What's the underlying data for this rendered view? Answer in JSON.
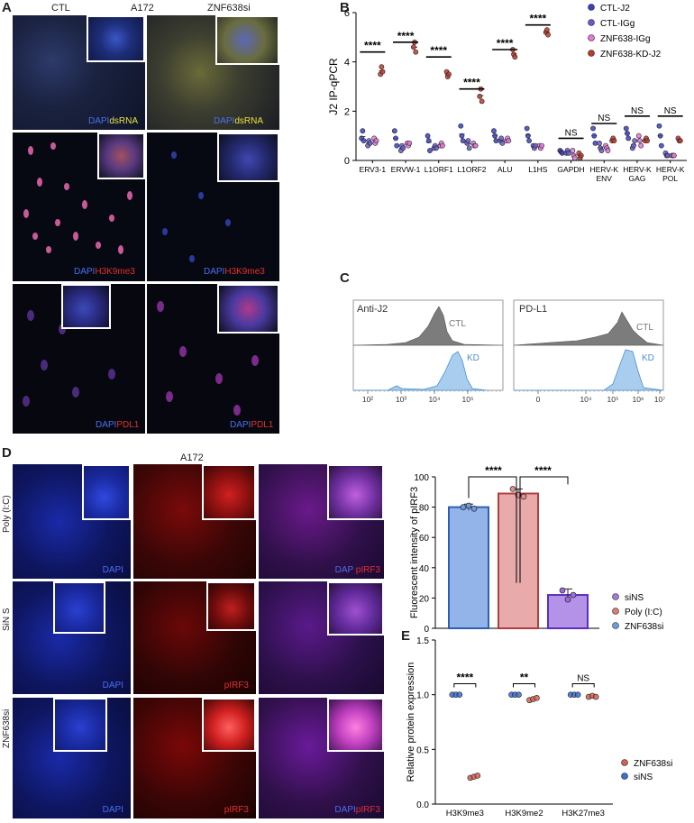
{
  "panels": {
    "a": "A",
    "b": "B",
    "c": "C",
    "d": "D",
    "e": "E"
  },
  "panel_a": {
    "title": "A172",
    "col_ctl": "CTL",
    "col_si": "ZNF638si",
    "stain_dapi": "DAPI",
    "stain_dsrna": "dsRNA",
    "stain_h3k9me3": "H3K9me3",
    "stain_pdl1": "PDL1"
  },
  "panel_d": {
    "title": "A172",
    "row1": "Poly (I:C)",
    "row2": "SiN S",
    "row3": "ZNF638si",
    "dapi": "DAPI",
    "pirf3": "pIRF3",
    "merge_dapi": "DAP",
    "merge_dapi_full": "DAPI",
    "merge_pirf3": "pIRF3"
  },
  "panel_c": {
    "plot1_title": "Anti-J2",
    "plot2_title": "PD-L1",
    "ctl": "CTL",
    "kd": "KD",
    "ticks1": [
      "10²",
      "10³",
      "10⁴",
      "10⁵"
    ],
    "ticks2": [
      "0",
      "10⁴",
      "10⁵",
      "10⁶",
      "10⁷"
    ]
  },
  "chart_data": [
    {
      "type": "scatter",
      "id": "B",
      "ylabel": "J2 IP-qPCR",
      "ylim": [
        0,
        6
      ],
      "yticks": [
        "0",
        "2",
        "4",
        "6"
      ],
      "categories": [
        "ERV3-1",
        "ERVW-1",
        "L1ORF1",
        "L1ORF2",
        "ALU",
        "L1HS",
        "GAPDH",
        "HERV-K ENV",
        "HERV-K GAG",
        "HERV-K POL"
      ],
      "category_lines": [
        [
          "ERV3-1"
        ],
        [
          "ERVW-1"
        ],
        [
          "L1ORF1"
        ],
        [
          "L1ORF2"
        ],
        [
          "ALU"
        ],
        [
          "L1HS"
        ],
        [
          "GAPDH"
        ],
        [
          "HERV-K",
          "ENV"
        ],
        [
          "HERV-K",
          "GAG"
        ],
        [
          "HERV-K",
          "POL"
        ]
      ],
      "series": [
        {
          "name": "CTL-J2",
          "color": "#3b3fc4",
          "values": [
            [
              0.9,
              1.2,
              0.8
            ],
            [
              1.2,
              0.9,
              0.6
            ],
            [
              1.0,
              0.8,
              0.4
            ],
            [
              1.4,
              1.0,
              0.8
            ],
            [
              1.2,
              1.0,
              0.8
            ],
            [
              1.3,
              1.0,
              0.8
            ],
            [
              0.4,
              0.35,
              0.3
            ],
            [
              1.3,
              1.0,
              0.7
            ],
            [
              1.3,
              1.1,
              0.9
            ],
            [
              1.4,
              1.0,
              0.6
            ]
          ]
        },
        {
          "name": "CTL-IGg",
          "color": "#6a5acd",
          "values": [
            [
              0.6,
              0.8,
              0.7
            ],
            [
              0.4,
              0.6,
              0.5
            ],
            [
              0.5,
              0.6,
              0.5
            ],
            [
              0.7,
              0.8,
              0.5
            ],
            [
              0.8,
              0.9,
              0.7
            ],
            [
              0.6,
              0.5,
              0.6
            ],
            [
              0.3,
              0.4,
              0.3
            ],
            [
              0.7,
              0.5,
              0.4
            ],
            [
              0.5,
              0.6,
              0.8
            ],
            [
              0.3,
              0.2,
              0.2
            ]
          ]
        },
        {
          "name": "ZNF638-IGg",
          "color": "#e07ad8",
          "values": [
            [
              0.9,
              0.7,
              0.8
            ],
            [
              0.7,
              0.6,
              0.7
            ],
            [
              0.6,
              0.7,
              0.6
            ],
            [
              0.7,
              0.6,
              0.6
            ],
            [
              0.8,
              0.9,
              0.8
            ],
            [
              0.6,
              0.5,
              0.6
            ],
            [
              0.4,
              0.2,
              0.1
            ],
            [
              0.6,
              0.5,
              0.4
            ],
            [
              1.0,
              0.8,
              0.6
            ],
            [
              0.2,
              0.2,
              0.2
            ]
          ]
        },
        {
          "name": "ZNF638-KD-J2",
          "color": "#c0392b",
          "values": [
            [
              3.5,
              3.8,
              3.6
            ],
            [
              4.6,
              4.8,
              4.4
            ],
            [
              3.6,
              3.4,
              3.5
            ],
            [
              2.6,
              2.9,
              2.4
            ],
            [
              4.5,
              4.3,
              4.2
            ],
            [
              5.2,
              5.3,
              5.1
            ],
            [
              0.3,
              0.1,
              0.2
            ],
            [
              0.8,
              0.9,
              0.8
            ],
            [
              0.8,
              0.9,
              0.8
            ],
            [
              0.9,
              0.8,
              0.8
            ]
          ]
        }
      ],
      "significance": [
        "****",
        "****",
        "****",
        "****",
        "****",
        "****",
        "NS",
        "NS",
        "NS",
        "NS"
      ],
      "legend_position": "top-right"
    },
    {
      "type": "bar",
      "id": "D",
      "ylabel": "Fluorescent intensity of pIRF3",
      "ylim": [
        0,
        100
      ],
      "yticks": [
        "0",
        "20",
        "40",
        "60",
        "80",
        "100"
      ],
      "categories": [
        "siNS",
        "Poly (I:C)",
        "ZNF638si"
      ],
      "plot_order": [
        "siNS",
        "ZNF638si",
        "Poly (I:C)"
      ],
      "values": [
        80,
        22,
        89
      ],
      "points": [
        [
          80,
          81,
          79
        ],
        [
          25,
          19,
          22
        ],
        [
          92,
          88,
          87
        ]
      ],
      "errors": [
        2,
        4,
        3
      ],
      "colors": [
        "#6f9be0",
        "#9b6de0",
        "#e08d8d"
      ],
      "edge_colors": [
        "#2f5fb5",
        "#5b2fc0",
        "#b04040"
      ],
      "legend_colors": [
        "#a07be0",
        "#e07b6f",
        "#6f9be0"
      ],
      "significance": [
        "****",
        "****"
      ],
      "legend_position": "right"
    },
    {
      "type": "scatter",
      "id": "E",
      "ylabel": "Relative protein expression",
      "ylim": [
        0,
        1.5
      ],
      "yticks": [
        "0.0",
        "0.5",
        "1.0",
        "1.5"
      ],
      "categories": [
        "H3K9me3",
        "H3K9me2",
        "H3K27me3"
      ],
      "series": [
        {
          "name": "siNS",
          "color": "#3b6fd0",
          "values": [
            [
              1.0,
              1.0,
              1.0
            ],
            [
              1.0,
              1.0,
              1.0
            ],
            [
              1.0,
              1.0,
              1.0
            ]
          ]
        },
        {
          "name": "ZNF638si",
          "color": "#d0604f",
          "values": [
            [
              0.24,
              0.25,
              0.26
            ],
            [
              0.95,
              0.96,
              0.97
            ],
            [
              0.98,
              0.99,
              0.98
            ]
          ]
        }
      ],
      "significance": [
        "****",
        "**",
        "NS"
      ],
      "legend_order": [
        "ZNF638si",
        "siNS"
      ],
      "legend_position": "bottom-right"
    }
  ]
}
